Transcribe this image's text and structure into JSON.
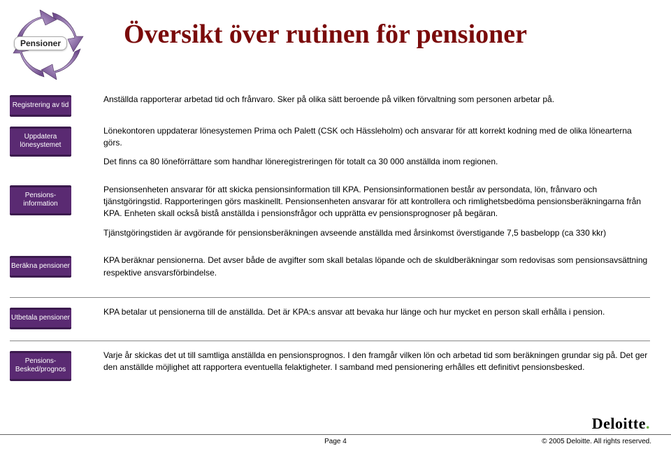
{
  "badge_label": "Pensioner",
  "title": "Översikt över rutinen för pensioner",
  "rows": [
    {
      "label": "Registrering av tid",
      "paragraphs": [
        "Anställda rapporterar arbetad tid och frånvaro. Sker på olika sätt beroende på vilken förvaltning som personen arbetar på."
      ]
    },
    {
      "label": "Uppdatera lönesystemet",
      "paragraphs": [
        "Lönekontoren uppdaterar lönesystemen Prima och Palett (CSK och Hässleholm) och ansvarar för att korrekt kodning med de olika lönearterna görs.",
        "Det finns ca 80 löneförrättare som handhar löneregistreringen för totalt ca 30 000 anställda inom regionen."
      ]
    },
    {
      "label": "Pensions-\ninformation",
      "paragraphs": [
        "Pensionsenheten ansvarar för att skicka pensionsinformation till KPA. Pensionsinformationen består av persondata, lön, frånvaro och tjänstgöringstid. Rapporteringen görs maskinellt. Pensionsenheten ansvarar för att kontrollera och rimlighetsbedöma pensionsberäkningarna från KPA. Enheten skall också bistå anställda i pensionsfrågor och upprätta ev pensionsprognoser på begäran.",
        "Tjänstgöringstiden är avgörande för pensionsberäkningen avseende anställda med årsinkomst överstigande 7,5 basbelopp (ca 330 kkr)"
      ]
    },
    {
      "label": "Beräkna pensioner",
      "paragraphs": [
        "KPA beräknar pensionerna. Det avser både de avgifter som skall betalas löpande och de skuldberäkningar som redovisas som pensionsavsättning respektive ansvarsförbindelse."
      ]
    },
    {
      "label": "Utbetala pensioner",
      "paragraphs": [
        "KPA betalar ut pensionerna till de anställda. Det är KPA:s ansvar att bevaka hur länge och hur mycket en person skall erhålla i pension."
      ]
    },
    {
      "label": "Pensions-\nBesked/prognos",
      "paragraphs": [
        "Varje år skickas det ut till samtliga anställda en pensionsprognos. I den framgår vilken lön och arbetad tid som beräkningen grundar sig på. Det ger den anställde möjlighet att rapportera eventuella felaktigheter. I samband med pensionering erhålles ett definitivt pensionsbesked."
      ]
    }
  ],
  "dividers_after": [
    3,
    4
  ],
  "footer": {
    "page": "Page 4",
    "copyright": "© 2005 Deloitte. All rights reserved."
  },
  "deloitte_brand": "Deloitte",
  "colors": {
    "title": "#7a0a0a",
    "label_bg": "#5a2a72",
    "label_border": "#3b1a4d",
    "cycle": "#a47fbf",
    "cycle_dark": "#6d4a8a",
    "deloitte_dot": "#6cb33f"
  }
}
